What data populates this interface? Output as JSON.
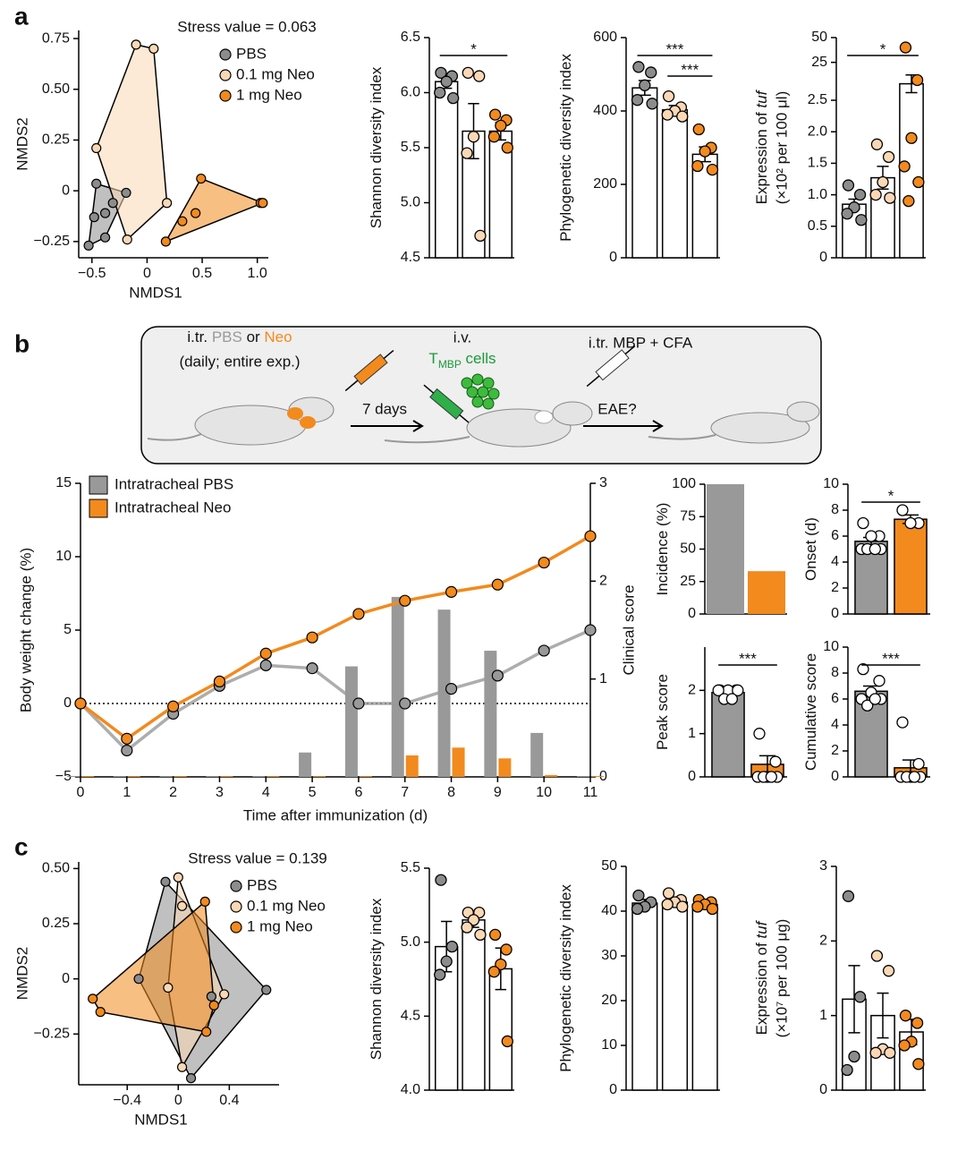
{
  "panels": [
    "a",
    "b",
    "c"
  ],
  "diagram": {
    "step1": [
      "i.tr. ",
      "PBS",
      " or ",
      "Neo"
    ],
    "step1_note": "(daily; entire exp.)",
    "step2": "i.v.",
    "step2_cells": [
      "T",
      "MBP",
      " cells"
    ],
    "step3": "i.tr. MBP + CFA",
    "arrow1": "7 days",
    "arrow2": "EAE?"
  },
  "chart_data": [
    {
      "type": "scatter",
      "annotation": "Stress value = 0.063",
      "xlabel": "NMDS1",
      "ylabel": "NMDS2",
      "xlim": [
        -0.62,
        1.1
      ],
      "ylim": [
        -0.33,
        0.79
      ],
      "xticks": [
        {
          "value": -0.5,
          "label": "−0.5"
        },
        0,
        0.5,
        {
          "value": 1,
          "label": "1.0"
        }
      ],
      "yticks": [
        {
          "value": -0.25,
          "label": "−0.25"
        },
        0,
        0.25,
        {
          "value": 0.5,
          "label": "0.50"
        },
        0.75
      ],
      "hull": true,
      "series": [
        {
          "name": "PBS",
          "color": "#8c8c8c",
          "x": [
            -0.46,
            -0.31,
            -0.38,
            -0.53,
            -0.48,
            -0.19,
            -0.38
          ],
          "y": [
            0.035,
            -0.06,
            -0.23,
            -0.27,
            -0.13,
            -0.01,
            -0.11
          ]
        },
        {
          "name": "0.1 mg Neo",
          "color": "#fbd8b5",
          "x": [
            -0.1,
            0.06,
            -0.46,
            0.18,
            -0.18
          ],
          "y": [
            0.72,
            0.7,
            0.21,
            -0.06,
            -0.24
          ]
        },
        {
          "name": "1 mg Neo",
          "color": "#f28a1e",
          "x": [
            0.17,
            0.32,
            0.44,
            0.49,
            1.03,
            1.05
          ],
          "y": [
            -0.25,
            -0.15,
            -0.11,
            0.06,
            -0.06,
            -0.06
          ]
        }
      ]
    },
    {
      "type": "dotbar",
      "ylabel": [
        "Shannon diversity index"
      ],
      "ylim": [
        4.5,
        6.5
      ],
      "yticks": [
        4.5,
        {
          "value": 5,
          "label": "5.0"
        },
        5.5,
        {
          "value": 6,
          "label": "6.0"
        },
        6.5
      ],
      "bar_colors": [
        "#ffffff",
        "#ffffff",
        "#ffffff"
      ],
      "point_colors": [
        "#8c8c8c",
        "#fbd8b5",
        "#f28a1e"
      ],
      "means": [
        6.1,
        5.65,
        5.65
      ],
      "sems": [
        0.06,
        0.25,
        0.08
      ],
      "points": [
        [
          6.18,
          6.15,
          6.1,
          6.0,
          5.95
        ],
        [
          6.18,
          6.15,
          5.6,
          5.45,
          4.7
        ],
        [
          5.8,
          5.75,
          5.7,
          5.6,
          5.5
        ]
      ],
      "brackets": [
        {
          "from": 0,
          "to": 2,
          "label": "*"
        }
      ]
    },
    {
      "type": "dotbar",
      "ylabel": [
        "Phylogenetic diversity index"
      ],
      "ylim": [
        0,
        600
      ],
      "yticks": [
        0,
        200,
        400,
        600
      ],
      "bar_colors": [
        "#ffffff",
        "#ffffff",
        "#ffffff"
      ],
      "point_colors": [
        "#8c8c8c",
        "#fbd8b5",
        "#f28a1e"
      ],
      "means": [
        463,
        403,
        282
      ],
      "sems": [
        20,
        12,
        20
      ],
      "points": [
        [
          520,
          505,
          470,
          430,
          420
        ],
        [
          440,
          410,
          400,
          390,
          385
        ],
        [
          350,
          300,
          290,
          250,
          240
        ]
      ],
      "brackets": [
        {
          "from": 0,
          "to": 2,
          "label": "***"
        },
        {
          "from": 1,
          "to": 2,
          "label": "***"
        }
      ]
    },
    {
      "type": "dotbar",
      "ylabel": [
        "Expression of ",
        "tuf"
      ],
      "ylabel2": "(×10² per 100 μl)",
      "ylim": [
        0,
        50
      ],
      "ybreak": [
        2.6,
        22
      ],
      "yticks": [
        0,
        0.5,
        {
          "value": 1,
          "label": "1.0"
        },
        1.5,
        {
          "value": 2,
          "label": "2.0"
        },
        2.5,
        25,
        50
      ],
      "bar_colors": [
        "#ffffff",
        "#ffffff",
        "#ffffff"
      ],
      "point_colors": [
        "#8c8c8c",
        "#fbd8b5",
        "#f28a1e"
      ],
      "means": [
        0.85,
        1.27,
        9.5
      ],
      "sems": [
        0.08,
        0.18,
        6
      ],
      "points": [
        [
          1.15,
          1.0,
          0.8,
          0.7,
          0.6
        ],
        [
          1.8,
          1.6,
          1.2,
          1.0,
          0.95
        ],
        [
          40,
          12,
          1.9,
          1.45,
          1.2,
          0.9
        ]
      ],
      "brackets": [
        {
          "from": 0,
          "to": 2,
          "label": "*"
        }
      ]
    },
    {
      "type": "line",
      "xlabel": "Time after immunization (d)",
      "ylabel": "Body weight change (%)",
      "y2label": "Clinical score",
      "x": [
        0,
        1,
        2,
        3,
        4,
        5,
        6,
        7,
        8,
        9,
        10,
        11
      ],
      "xlim": [
        0,
        11
      ],
      "xticks": [
        0,
        1,
        2,
        3,
        4,
        5,
        6,
        7,
        8,
        9,
        10,
        11
      ],
      "ylim": [
        -5,
        15
      ],
      "yticks": [
        {
          "value": -5,
          "label": "−5"
        },
        0,
        5,
        10,
        15
      ],
      "y2lim": [
        0,
        3
      ],
      "y2ticks": [
        0,
        1,
        2,
        3
      ],
      "zero_line": true,
      "series": [
        {
          "name": "Intratracheal PBS",
          "color": "#999999",
          "values": [
            0,
            -3.2,
            -0.7,
            1.2,
            2.6,
            2.4,
            0,
            0,
            1.0,
            1.9,
            3.6,
            5.0
          ],
          "y2_values": [
            0,
            0,
            0,
            0,
            0,
            0.24,
            1.12,
            1.83,
            1.7,
            1.28,
            0.44,
            0
          ]
        },
        {
          "name": "Intratracheal Neo",
          "color": "#f28a1e",
          "values": [
            0,
            -2.4,
            -0.2,
            1.5,
            3.4,
            4.5,
            6.1,
            7.0,
            7.6,
            8.1,
            9.6,
            11.4
          ],
          "y2_values": [
            0,
            0,
            0,
            0,
            0,
            0,
            0,
            0.21,
            0.29,
            0.18,
            0.01,
            0
          ]
        }
      ]
    },
    {
      "type": "bar",
      "ylabel": [
        "Incidence (%)"
      ],
      "ylim": [
        0,
        100
      ],
      "yticks": [
        0,
        25,
        50,
        75,
        100
      ],
      "values": [
        100,
        33
      ],
      "colors": [
        "#999999",
        "#f28a1e"
      ]
    },
    {
      "type": "dotbar",
      "ylabel": [
        "Onset (d)"
      ],
      "ylim": [
        0,
        10
      ],
      "yticks": [
        0,
        2,
        4,
        6,
        8,
        10
      ],
      "bar_colors": [
        "#999999",
        "#f28a1e"
      ],
      "point_colors": [
        "#ffffff",
        "#ffffff"
      ],
      "means": [
        5.6,
        7.3
      ],
      "sems": [
        0.3,
        0.33
      ],
      "points": [
        [
          7,
          6,
          6,
          5,
          5,
          5,
          5
        ],
        [
          8,
          7,
          7
        ]
      ],
      "brackets": [
        {
          "from": 0,
          "to": 1,
          "label": "*"
        }
      ]
    },
    {
      "type": "dotbar",
      "ylabel": [
        "Peak score"
      ],
      "ylim": [
        0,
        3
      ],
      "yticks": [
        0,
        1,
        2
      ],
      "bar_colors": [
        "#999999",
        "#f28a1e"
      ],
      "point_colors": [
        "#ffffff",
        "#ffffff"
      ],
      "means": [
        1.95,
        0.29
      ],
      "sems": [
        0.08,
        0.2
      ],
      "points": [
        [
          2,
          2,
          2,
          2,
          2,
          1.8,
          1.8
        ],
        [
          1,
          0.35,
          0,
          0,
          0,
          0,
          0
        ]
      ],
      "brackets": [
        {
          "from": 0,
          "to": 1,
          "label": "***"
        }
      ]
    },
    {
      "type": "dotbar",
      "ylabel": [
        "Cumulative score"
      ],
      "ylim": [
        0,
        10
      ],
      "yticks": [
        0,
        2,
        4,
        6,
        8,
        10
      ],
      "bar_colors": [
        "#999999",
        "#f28a1e"
      ],
      "point_colors": [
        "#ffffff",
        "#ffffff"
      ],
      "means": [
        6.6,
        0.7
      ],
      "sems": [
        0.4,
        0.6
      ],
      "points": [
        [
          8.3,
          7.4,
          6.5,
          6,
          6,
          5.5,
          6
        ],
        [
          4.2,
          1,
          0,
          0,
          0,
          0,
          0
        ]
      ],
      "brackets": [
        {
          "from": 0,
          "to": 1,
          "label": "***"
        }
      ]
    },
    {
      "type": "scatter",
      "annotation": "Stress value = 0.139",
      "xlabel": "NMDS1",
      "ylabel": "NMDS2",
      "xlim": [
        -0.78,
        0.79
      ],
      "ylim": [
        -0.48,
        0.53
      ],
      "xticks": [
        {
          "value": -0.4,
          "label": "−0.4"
        },
        0,
        0.4
      ],
      "yticks": [
        {
          "value": -0.25,
          "label": "−0.25"
        },
        0,
        0.25,
        {
          "value": 0.5,
          "label": "0.50"
        }
      ],
      "hull": true,
      "series": [
        {
          "name": "PBS",
          "color": "#8c8c8c",
          "x": [
            -0.1,
            0.1,
            0.69,
            -0.31,
            0.26
          ],
          "y": [
            0.44,
            -0.45,
            -0.05,
            0,
            -0.08
          ]
        },
        {
          "name": "0.1 mg Neo",
          "color": "#fbd8b5",
          "x": [
            0,
            0.03,
            0.36,
            -0.08,
            0.03
          ],
          "y": [
            0.46,
            0.33,
            -0.07,
            -0.04,
            -0.4
          ]
        },
        {
          "name": "1 mg Neo",
          "color": "#f28a1e",
          "x": [
            0.21,
            -0.67,
            -0.61,
            0.22,
            0.28
          ],
          "y": [
            0.35,
            -0.09,
            -0.15,
            -0.24,
            -0.12
          ]
        }
      ]
    },
    {
      "type": "dotbar",
      "ylabel": [
        "Shannon diversity index"
      ],
      "ylim": [
        4,
        5.5
      ],
      "yticks": [
        {
          "value": 4,
          "label": "4.0"
        },
        4.5,
        {
          "value": 5,
          "label": "5.0"
        },
        5.5
      ],
      "bar_colors": [
        "#ffffff",
        "#ffffff",
        "#ffffff"
      ],
      "point_colors": [
        "#8c8c8c",
        "#fbd8b5",
        "#f28a1e"
      ],
      "means": [
        4.97,
        5.15,
        4.82
      ],
      "sems": [
        0.17,
        0.05,
        0.14
      ],
      "points": [
        [
          5.42,
          4.97,
          4.87,
          4.78
        ],
        [
          5.2,
          5.2,
          5.15,
          5.1,
          5.05
        ],
        [
          5.05,
          4.95,
          4.85,
          4.8,
          4.33
        ]
      ]
    },
    {
      "type": "dotbar",
      "ylabel": [
        "Phylogenetic diversity index"
      ],
      "ylim": [
        0,
        50
      ],
      "yticks": [
        0,
        10,
        20,
        30,
        40,
        50
      ],
      "bar_colors": [
        "#ffffff",
        "#ffffff",
        "#ffffff"
      ],
      "point_colors": [
        "#8c8c8c",
        "#fbd8b5",
        "#f28a1e"
      ],
      "means": [
        41.8,
        42,
        41.5
      ],
      "sems": [
        0.8,
        0.7,
        0.5
      ],
      "points": [
        [
          43.5,
          42,
          41,
          40.5
        ],
        [
          44,
          42.5,
          42,
          41.5,
          41
        ],
        [
          42.5,
          42,
          41.5,
          41,
          40.5
        ]
      ]
    },
    {
      "type": "dotbar",
      "ylabel": [
        "Expression of ",
        "tuf"
      ],
      "ylabel2": "(×10⁷ per 100 μg)",
      "ylim": [
        0,
        3
      ],
      "yticks": [
        0,
        1,
        2,
        3
      ],
      "bar_colors": [
        "#ffffff",
        "#ffffff",
        "#ffffff"
      ],
      "point_colors": [
        "#8c8c8c",
        "#fbd8b5",
        "#f28a1e"
      ],
      "means": [
        1.22,
        1.0,
        0.78
      ],
      "sems": [
        0.45,
        0.3,
        0.17
      ],
      "points": [
        [
          2.6,
          1.25,
          0.45,
          0.27
        ],
        [
          1.8,
          1.6,
          0.55,
          0.5,
          0.5
        ],
        [
          1.0,
          0.9,
          0.65,
          0.6,
          0.35
        ]
      ]
    }
  ]
}
